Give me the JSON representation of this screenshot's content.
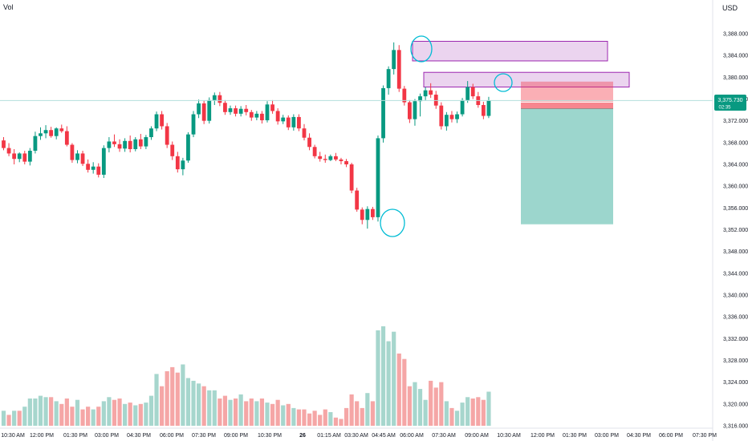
{
  "header": {
    "volume_label": "Vol",
    "currency": "USD"
  },
  "price_badge": {
    "price": "3,375.730",
    "countdown": "02:35"
  },
  "chart_data": {
    "type": "candlestick",
    "price_axis": {
      "ticks": [
        "3,388.000",
        "3,384.000",
        "3,380.000",
        "3,376.000",
        "3,372.000",
        "3,368.000",
        "3,364.000",
        "3,360.000",
        "3,356.000",
        "3,352.000",
        "3,348.000",
        "3,344.000",
        "3,340.000",
        "3,336.000",
        "3,332.000",
        "3,328.000",
        "3,324.000",
        "3,320.000",
        "3,316.000"
      ],
      "range": [
        3315.6,
        3390.0
      ]
    },
    "time_axis": {
      "ticks": [
        "10:30 AM",
        "12:00 PM",
        "01:30 PM",
        "03:00 PM",
        "04:30 PM",
        "06:00 PM",
        "07:30 PM",
        "09:00 PM",
        "10:30 PM",
        "26",
        "01:15 AM",
        "03:30 AM",
        "04:45 AM",
        "06:00 AM",
        "07:30 AM",
        "09:00 AM",
        "10:30 AM",
        "12:00 PM",
        "01:30 PM",
        "03:00 PM",
        "04:30 PM",
        "06:00 PM",
        "07:30 PM"
      ]
    },
    "current_price": 3375.73,
    "colors": {
      "up": "#089981",
      "down": "#f23645",
      "vol_up": "#a6d6cd",
      "vol_down": "#f5a6a6",
      "zone": "#9c27b0"
    },
    "candles": [
      [
        3368.4,
        3369.0,
        3366.6,
        3367.0
      ],
      [
        3367.0,
        3367.9,
        3365.5,
        3366.0
      ],
      [
        3366.0,
        3366.8,
        3364.0,
        3365.0
      ],
      [
        3365.0,
        3366.2,
        3364.4,
        3366.0
      ],
      [
        3366.0,
        3366.5,
        3364.0,
        3364.5
      ],
      [
        3364.5,
        3367.0,
        3363.8,
        3366.5
      ],
      [
        3366.5,
        3370.0,
        3366.0,
        3369.2
      ],
      [
        3369.2,
        3370.8,
        3368.5,
        3369.7
      ],
      [
        3369.7,
        3371.2,
        3368.8,
        3370.3
      ],
      [
        3370.3,
        3370.9,
        3368.9,
        3369.2
      ],
      [
        3369.2,
        3370.8,
        3368.6,
        3370.6
      ],
      [
        3370.6,
        3371.3,
        3369.8,
        3370.1
      ],
      [
        3370.1,
        3371.0,
        3367.3,
        3367.6
      ],
      [
        3367.6,
        3367.9,
        3364.3,
        3364.8
      ],
      [
        3364.8,
        3366.6,
        3364.2,
        3366.0
      ],
      [
        3366.0,
        3366.5,
        3363.7,
        3364.1
      ],
      [
        3364.1,
        3364.9,
        3362.5,
        3363.0
      ],
      [
        3363.0,
        3364.4,
        3362.3,
        3363.6
      ],
      [
        3363.6,
        3364.2,
        3361.6,
        3362.1
      ],
      [
        3362.1,
        3367.5,
        3361.5,
        3367.0
      ],
      [
        3367.0,
        3369.0,
        3366.2,
        3368.2
      ],
      [
        3368.2,
        3369.5,
        3367.2,
        3367.7
      ],
      [
        3367.7,
        3368.6,
        3366.3,
        3366.9
      ],
      [
        3366.9,
        3368.8,
        3366.3,
        3368.3
      ],
      [
        3368.3,
        3369.3,
        3366.2,
        3366.8
      ],
      [
        3366.8,
        3369.0,
        3366.4,
        3368.6
      ],
      [
        3368.6,
        3369.6,
        3366.8,
        3367.3
      ],
      [
        3367.3,
        3369.4,
        3366.8,
        3369.0
      ],
      [
        3369.0,
        3371.0,
        3368.5,
        3370.6
      ],
      [
        3370.6,
        3373.7,
        3370.1,
        3373.2
      ],
      [
        3373.2,
        3373.8,
        3370.4,
        3371.0
      ],
      [
        3371.0,
        3371.6,
        3367.0,
        3367.6
      ],
      [
        3367.6,
        3368.2,
        3364.8,
        3365.5
      ],
      [
        3365.5,
        3366.3,
        3362.5,
        3363.1
      ],
      [
        3363.1,
        3365.2,
        3362.0,
        3364.7
      ],
      [
        3364.7,
        3369.9,
        3364.3,
        3369.5
      ],
      [
        3369.5,
        3373.8,
        3369.0,
        3373.2
      ],
      [
        3373.2,
        3375.9,
        3372.5,
        3375.2
      ],
      [
        3375.2,
        3375.7,
        3371.4,
        3372.0
      ],
      [
        3372.0,
        3376.3,
        3371.5,
        3375.8
      ],
      [
        3375.8,
        3377.2,
        3374.9,
        3376.7
      ],
      [
        3376.7,
        3377.3,
        3374.7,
        3375.3
      ],
      [
        3375.3,
        3375.8,
        3373.1,
        3373.6
      ],
      [
        3373.6,
        3374.8,
        3373.1,
        3374.3
      ],
      [
        3374.3,
        3374.8,
        3372.8,
        3373.3
      ],
      [
        3373.3,
        3374.7,
        3372.8,
        3374.2
      ],
      [
        3374.2,
        3374.9,
        3373.0,
        3373.6
      ],
      [
        3373.6,
        3374.0,
        3372.0,
        3372.6
      ],
      [
        3372.6,
        3373.8,
        3372.1,
        3373.3
      ],
      [
        3373.3,
        3373.8,
        3371.5,
        3372.1
      ],
      [
        3372.1,
        3375.6,
        3371.7,
        3375.0
      ],
      [
        3375.0,
        3375.8,
        3373.3,
        3373.8
      ],
      [
        3373.8,
        3374.3,
        3371.3,
        3371.9
      ],
      [
        3371.9,
        3373.1,
        3371.4,
        3372.6
      ],
      [
        3372.6,
        3373.0,
        3370.3,
        3370.8
      ],
      [
        3370.8,
        3373.2,
        3370.2,
        3372.7
      ],
      [
        3372.7,
        3373.2,
        3370.1,
        3370.6
      ],
      [
        3370.6,
        3371.4,
        3368.4,
        3368.9
      ],
      [
        3368.9,
        3369.7,
        3366.6,
        3367.2
      ],
      [
        3367.2,
        3367.6,
        3365.1,
        3365.5
      ],
      [
        3365.5,
        3366.3,
        3364.5,
        3365.0
      ],
      [
        3365.0,
        3365.8,
        3364.3,
        3364.8
      ],
      [
        3364.8,
        3365.8,
        3364.6,
        3365.5
      ],
      [
        3365.5,
        3366.1,
        3364.6,
        3364.9
      ],
      [
        3364.9,
        3365.2,
        3364.0,
        3364.6
      ],
      [
        3364.6,
        3365.0,
        3363.5,
        3364.0
      ],
      [
        3364.0,
        3364.3,
        3358.7,
        3359.2
      ],
      [
        3359.2,
        3359.7,
        3355.3,
        3355.7
      ],
      [
        3355.7,
        3356.1,
        3353.0,
        3353.8
      ],
      [
        3353.8,
        3356.3,
        3352.2,
        3355.8
      ],
      [
        3355.8,
        3356.2,
        3353.8,
        3354.3
      ],
      [
        3354.3,
        3369.3,
        3353.5,
        3368.8
      ],
      [
        3368.8,
        3378.5,
        3368.0,
        3378.0
      ],
      [
        3378.0,
        3382.0,
        3376.8,
        3381.5
      ],
      [
        3381.5,
        3386.4,
        3380.5,
        3385.0
      ],
      [
        3385.0,
        3385.9,
        3377.3,
        3377.9
      ],
      [
        3377.9,
        3378.4,
        3374.8,
        3375.4
      ],
      [
        3375.4,
        3375.8,
        3371.6,
        3372.3
      ],
      [
        3372.3,
        3376.0,
        3371.1,
        3375.6
      ],
      [
        3375.6,
        3377.0,
        3372.8,
        3376.5
      ],
      [
        3376.5,
        3378.2,
        3375.8,
        3377.6
      ],
      [
        3377.6,
        3378.9,
        3376.2,
        3376.8
      ],
      [
        3376.8,
        3377.5,
        3374.2,
        3374.8
      ],
      [
        3374.8,
        3375.4,
        3370.4,
        3371.0
      ],
      [
        3371.0,
        3373.6,
        3370.2,
        3373.1
      ],
      [
        3373.1,
        3373.8,
        3371.7,
        3372.3
      ],
      [
        3372.3,
        3373.7,
        3371.6,
        3373.2
      ],
      [
        3373.2,
        3376.2,
        3372.8,
        3375.8
      ],
      [
        3375.8,
        3379.3,
        3375.3,
        3378.2
      ],
      [
        3378.2,
        3378.8,
        3376.0,
        3376.5
      ],
      [
        3376.5,
        3377.3,
        3374.4,
        3374.9
      ],
      [
        3374.9,
        3375.5,
        3372.3,
        3372.9
      ],
      [
        3372.9,
        3376.4,
        3372.5,
        3375.73
      ]
    ],
    "volume_up": [
      true,
      false,
      true,
      false,
      true,
      true,
      true,
      true,
      true,
      false,
      true,
      false,
      false,
      false,
      true,
      false,
      false,
      true,
      false,
      true,
      true,
      false,
      false,
      true,
      false,
      true,
      false,
      true,
      true,
      true,
      false,
      false,
      false,
      false,
      true,
      true,
      true,
      true,
      false,
      true,
      true,
      false,
      false,
      true,
      false,
      true,
      false,
      false,
      true,
      false,
      true,
      false,
      false,
      true,
      false,
      true,
      false,
      false,
      false,
      false,
      false,
      false,
      true,
      false,
      false,
      false,
      false,
      false,
      false,
      true,
      false,
      true,
      true,
      true,
      true,
      false,
      false,
      false,
      true,
      true,
      true,
      false,
      false,
      false,
      true,
      false,
      true,
      true,
      true,
      false,
      false,
      false,
      true
    ],
    "volume": [
      11,
      8,
      11,
      11,
      14,
      20,
      20,
      22,
      21,
      21,
      18,
      16,
      20,
      14,
      19,
      12,
      14,
      12,
      14,
      18,
      21,
      19,
      20,
      16,
      17,
      15,
      16,
      17,
      22,
      38,
      29,
      40,
      43,
      39,
      45,
      35,
      33,
      31,
      29,
      26,
      26,
      20,
      22,
      19,
      20,
      23,
      18,
      20,
      18,
      20,
      17,
      16,
      19,
      15,
      16,
      13,
      12,
      12,
      9,
      11,
      8,
      12,
      10,
      6,
      5,
      13,
      23,
      18,
      13,
      24,
      18,
      70,
      73,
      62,
      69,
      53,
      49,
      29,
      32,
      27,
      19,
      33,
      28,
      32,
      18,
      13,
      11,
      17,
      21,
      20,
      21,
      19,
      25
    ]
  },
  "zones": [
    {
      "name": "supply-zone-upper",
      "top": 3386.6,
      "bottom": 3383.0
    },
    {
      "name": "supply-zone-lower",
      "top": 3380.9,
      "bottom": 3378.2
    }
  ],
  "trade": {
    "entry": 3375.5,
    "stop": 3379.2,
    "target": 3353.0
  },
  "horizontal_line": 3375.73
}
